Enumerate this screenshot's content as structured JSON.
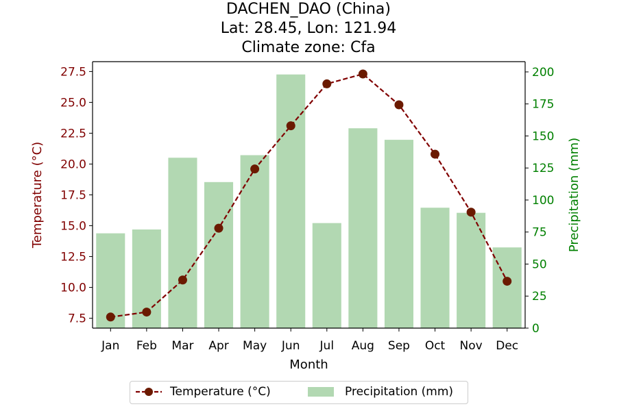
{
  "title": {
    "line1": "DACHEN_DAO (China)",
    "line2": "Lat: 28.45, Lon: 121.94",
    "line3": "Climate zone: Cfa"
  },
  "colors": {
    "temperature": "#800000",
    "temperature_marker": "#6b1a00",
    "precipitation_bar": "#b2d8b2",
    "precipitation_axis": "#008000"
  },
  "legend": {
    "temperature_label": "Temperature (°C)",
    "precipitation_label": "Precipitation (mm)"
  },
  "chart_data": {
    "type": "bar",
    "categories": [
      "Jan",
      "Feb",
      "Mar",
      "Apr",
      "May",
      "Jun",
      "Jul",
      "Aug",
      "Sep",
      "Oct",
      "Nov",
      "Dec"
    ],
    "xlabel": "Month",
    "y_left": {
      "label": "Temperature (°C)",
      "lim": [
        6.7,
        28.3
      ],
      "ticks": [
        "7.5",
        "10.0",
        "12.5",
        "15.0",
        "17.5",
        "20.0",
        "22.5",
        "25.0",
        "27.5"
      ]
    },
    "y_right": {
      "label": "Precipitation (mm)",
      "lim": [
        0,
        208
      ],
      "ticks": [
        "0",
        "25",
        "50",
        "75",
        "100",
        "125",
        "150",
        "175",
        "200"
      ]
    },
    "series": [
      {
        "name": "Temperature (°C)",
        "type": "line",
        "axis": "left",
        "values": [
          7.6,
          8.0,
          10.6,
          14.8,
          19.6,
          23.1,
          26.5,
          27.3,
          24.8,
          20.8,
          16.1,
          10.5
        ]
      },
      {
        "name": "Precipitation (mm)",
        "type": "bar",
        "axis": "right",
        "values": [
          74,
          77,
          133,
          114,
          135,
          198,
          82,
          156,
          147,
          94,
          90,
          63
        ]
      }
    ],
    "grid": false,
    "legend_position": "bottom-center"
  }
}
